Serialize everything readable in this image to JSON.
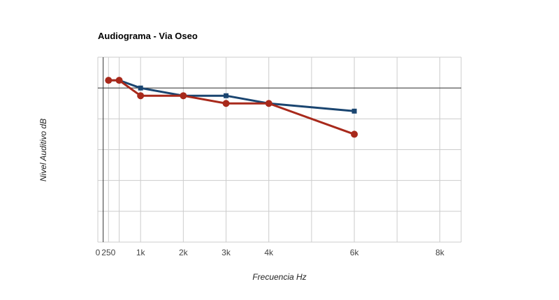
{
  "chart_data": {
    "type": "line",
    "title": "Audiograma - Via Oseo",
    "xlabel": "Frecuencia Hz",
    "ylabel": "Nivel Auditivo dB",
    "xlim": [
      0,
      8500
    ],
    "ylim": [
      -100,
      20
    ],
    "y_baseline": 0,
    "x_ticks": [
      {
        "value": 0,
        "label": "0"
      },
      {
        "value": 250,
        "label": "250"
      },
      {
        "value": 1000,
        "label": "1k"
      },
      {
        "value": 2000,
        "label": "2k"
      },
      {
        "value": 3000,
        "label": "3k"
      },
      {
        "value": 4000,
        "label": "4k"
      },
      {
        "value": 6000,
        "label": "6k"
      },
      {
        "value": 8000,
        "label": "8k"
      }
    ],
    "x_grid": [
      0,
      250,
      500,
      1000,
      2000,
      3000,
      4000,
      5000,
      6000,
      7000,
      8000,
      8500
    ],
    "y_grid": [
      20,
      0,
      -20,
      -40,
      -60,
      -80,
      -100
    ],
    "grid": true,
    "legend": "none",
    "series": [
      {
        "color": "#1a4570",
        "marker": "square",
        "x": [
          250,
          500,
          1000,
          2000,
          3000,
          4000,
          6000
        ],
        "y": [
          5,
          5,
          0,
          -5,
          -5,
          -10,
          -15
        ]
      },
      {
        "color": "#a8291b",
        "marker": "circle",
        "x": [
          250,
          500,
          1000,
          2000,
          3000,
          4000,
          6000
        ],
        "y": [
          5,
          5,
          -5,
          -5,
          -10,
          -10,
          -30
        ]
      }
    ]
  }
}
